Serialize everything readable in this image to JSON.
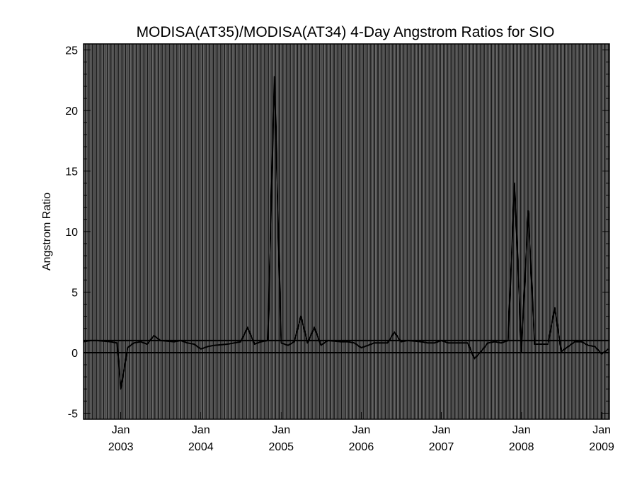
{
  "chart_data": {
    "type": "line",
    "title": "MODISA(AT35)/MODISA(AT34) 4-Day Angstrom Ratios for SIO",
    "xlabel": "",
    "ylabel": "Angstrom Ratio",
    "xlim": [
      "2002-07-15",
      "2009-02-05"
    ],
    "ylim": [
      -5.5,
      25.5
    ],
    "yticks": [
      -5,
      0,
      5,
      10,
      15,
      20,
      25
    ],
    "xticks": [
      {
        "date": "2003-01-01",
        "month": "Jan",
        "year": "2003"
      },
      {
        "date": "2004-01-01",
        "month": "Jan",
        "year": "2004"
      },
      {
        "date": "2005-01-01",
        "month": "Jan",
        "year": "2005"
      },
      {
        "date": "2006-01-01",
        "month": "Jan",
        "year": "2006"
      },
      {
        "date": "2007-01-01",
        "month": "Jan",
        "year": "2007"
      },
      {
        "date": "2008-01-01",
        "month": "Jan",
        "year": "2008"
      },
      {
        "date": "2009-01-01",
        "month": "Jan",
        "year": "2009"
      }
    ],
    "grid": "vertical lines every 4-day period",
    "reference_lines": [
      0,
      1
    ],
    "series": [
      {
        "color": "#000000",
        "x": [
          "2002-07-15",
          "2002-08-15",
          "2002-09-15",
          "2002-10-15",
          "2002-11-15",
          "2002-12-15",
          "2003-01-01",
          "2003-02-01",
          "2003-03-01",
          "2003-04-01",
          "2003-05-01",
          "2003-06-01",
          "2003-07-01",
          "2003-08-01",
          "2003-09-01",
          "2003-10-01",
          "2003-11-01",
          "2003-12-01",
          "2004-01-01",
          "2004-02-01",
          "2004-03-01",
          "2004-04-01",
          "2004-05-01",
          "2004-06-01",
          "2004-07-01",
          "2004-08-01",
          "2004-09-01",
          "2004-10-01",
          "2004-11-01",
          "2004-12-01",
          "2005-01-01",
          "2005-02-01",
          "2005-03-01",
          "2005-04-01",
          "2005-05-01",
          "2005-06-01",
          "2005-07-01",
          "2005-08-01",
          "2005-09-01",
          "2005-10-01",
          "2005-11-01",
          "2005-12-01",
          "2006-01-01",
          "2006-02-01",
          "2006-03-01",
          "2006-04-01",
          "2006-05-01",
          "2006-06-01",
          "2006-07-01",
          "2006-08-01",
          "2006-09-01",
          "2006-10-01",
          "2006-11-01",
          "2006-12-01",
          "2007-01-01",
          "2007-02-01",
          "2007-03-01",
          "2007-04-01",
          "2007-05-01",
          "2007-06-01",
          "2007-07-01",
          "2007-08-01",
          "2007-09-01",
          "2007-10-01",
          "2007-11-01",
          "2007-12-01",
          "2008-01-01",
          "2008-02-01",
          "2008-03-01",
          "2008-04-01",
          "2008-05-01",
          "2008-06-01",
          "2008-07-01",
          "2008-08-01",
          "2008-09-01",
          "2008-10-01",
          "2008-11-01",
          "2008-12-01",
          "2009-01-01",
          "2009-02-01"
        ],
        "y": [
          0.9,
          1.0,
          1.0,
          0.95,
          0.9,
          0.8,
          -3.0,
          0.4,
          0.8,
          0.9,
          0.7,
          1.4,
          1.0,
          0.95,
          0.9,
          1.0,
          0.8,
          0.7,
          0.3,
          0.5,
          0.6,
          0.65,
          0.7,
          0.8,
          0.9,
          2.1,
          0.7,
          0.9,
          1.0,
          22.8,
          0.8,
          0.6,
          0.9,
          3.0,
          0.8,
          2.1,
          0.6,
          1.0,
          0.95,
          0.9,
          0.9,
          0.8,
          0.4,
          0.6,
          0.8,
          0.8,
          0.8,
          1.7,
          0.9,
          1.0,
          0.95,
          0.9,
          0.8,
          0.8,
          1.0,
          0.8,
          0.8,
          0.8,
          0.8,
          -0.5,
          0.1,
          0.8,
          0.9,
          0.8,
          1.0,
          14.0,
          0.1,
          11.7,
          0.7,
          0.7,
          0.7,
          3.7,
          0.1,
          0.5,
          0.9,
          0.9,
          0.6,
          0.5,
          -0.1,
          0.3
        ]
      }
    ]
  }
}
